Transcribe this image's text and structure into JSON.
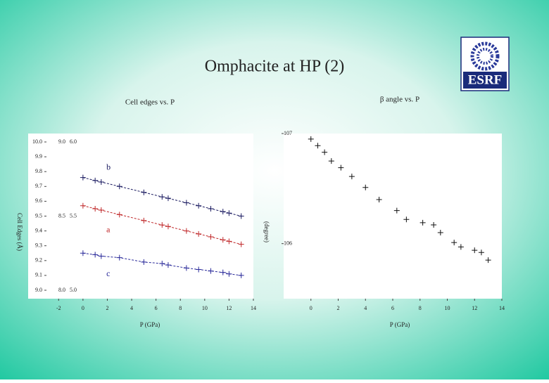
{
  "header": {
    "title": "Omphacite at HP (2)",
    "logo": "ESRF"
  },
  "chart_data": [
    {
      "type": "line",
      "title": "Cell edges vs. P",
      "x_label": "P (GPa)",
      "y_label": "Cell Edges (Å)",
      "x": [
        0,
        1,
        1.5,
        3,
        5,
        6.5,
        7,
        8.5,
        9.5,
        10.5,
        11.5,
        12,
        13
      ],
      "series": [
        {
          "name": "b",
          "color": "#1a1a60",
          "values": [
            9.76,
            9.74,
            9.73,
            9.7,
            9.66,
            9.63,
            9.62,
            9.59,
            9.57,
            9.55,
            9.53,
            9.52,
            9.5
          ]
        },
        {
          "name": "a",
          "color": "#c0282a",
          "values": [
            9.57,
            9.55,
            9.54,
            9.51,
            9.47,
            9.44,
            9.43,
            9.4,
            9.38,
            9.36,
            9.34,
            9.33,
            9.31
          ]
        },
        {
          "name": "c",
          "color": "#2a2a9a",
          "values": [
            9.25,
            9.24,
            9.23,
            9.22,
            9.19,
            9.18,
            9.17,
            9.15,
            9.14,
            9.13,
            9.12,
            9.11,
            9.1
          ]
        }
      ],
      "xlim": [
        -3,
        14
      ],
      "xticks": [
        -2,
        0,
        2,
        4,
        6,
        8,
        10,
        12,
        14
      ],
      "ylim": [
        9.0,
        10.0
      ],
      "yticks": [
        {
          "value": 9.0,
          "label": "9.0"
        },
        9.1,
        9.2,
        9.3,
        9.4,
        9.5,
        9.6,
        9.7,
        9.8,
        9.9,
        {
          "value": 10.0,
          "label": "10.0"
        }
      ],
      "y2lim": [
        8.0,
        9.0
      ],
      "y2ticks": [
        {
          "value": 8.0,
          "label": "8.0"
        },
        8.5,
        {
          "value": 9.0,
          "label": "9.0"
        }
      ],
      "y3lim": [
        5.0,
        6.0
      ],
      "y3ticks": [
        {
          "value": 5.0,
          "label": "5.0"
        },
        5.5,
        {
          "value": 6.0,
          "label": "6.0"
        }
      ]
    },
    {
      "type": "scatter",
      "title": "β angle vs. P",
      "x_label": "P (GPa)",
      "y_label": "(degree)",
      "x": [
        0,
        0.5,
        1,
        1.5,
        2.2,
        3,
        4,
        5,
        6.3,
        7,
        8.2,
        9,
        9.5,
        10.5,
        11,
        12,
        12.5,
        13
      ],
      "values": [
        106.95,
        106.89,
        106.83,
        106.75,
        106.69,
        106.61,
        106.51,
        106.4,
        106.3,
        106.22,
        106.19,
        106.17,
        106.1,
        106.01,
        105.97,
        105.94,
        105.92,
        105.85
      ],
      "color": "#111111",
      "xlim": [
        -2,
        14
      ],
      "xticks": [
        0,
        2,
        4,
        6,
        8,
        10,
        12,
        14
      ],
      "ylim": [
        105.5,
        107
      ],
      "yticks": [
        106,
        107
      ]
    }
  ]
}
